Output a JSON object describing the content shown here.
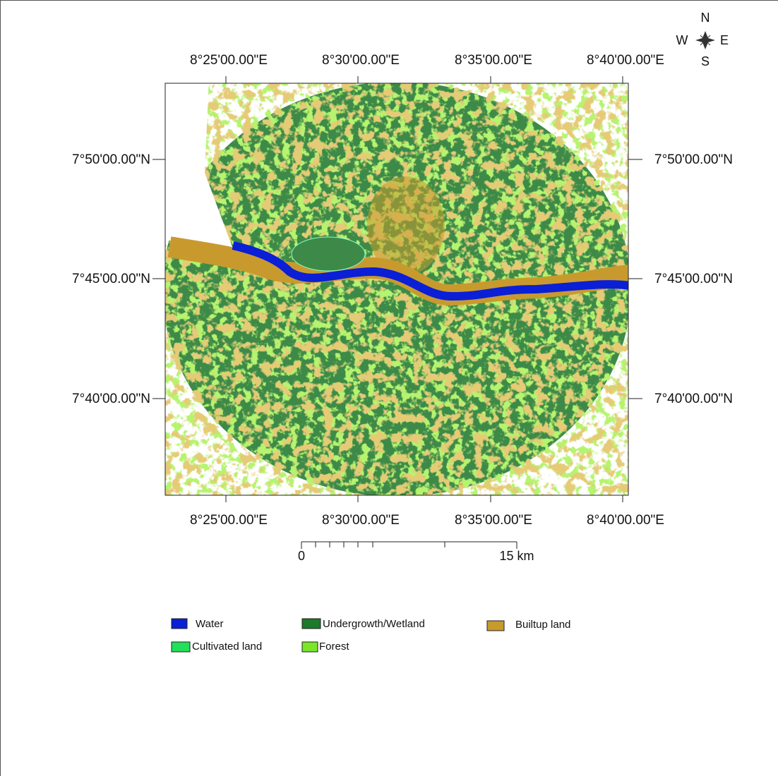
{
  "compass": {
    "north": "N",
    "south": "S",
    "west": "W",
    "east": "E"
  },
  "map": {
    "top_labels": [
      "8°25'00.00\"E",
      "8°30'00.00\"E",
      "8°35'00.00\"E",
      "8°40'00.00\"E"
    ],
    "bottom_labels": [
      "8°25'00.00\"E",
      "8°30'00.00\"E",
      "8°35'00.00\"E",
      "8°40'00.00\"E"
    ],
    "left_labels": [
      "7°50'00.00\"N",
      "7°45'00.00\"N",
      "7°40'00.00\"N"
    ],
    "right_labels": [
      "7°50'00.00\"N",
      "7°45'00.00\"N",
      "7°40'00.00\"N"
    ]
  },
  "scale_bar": {
    "start": "0",
    "end": "15 km"
  },
  "legend": [
    {
      "label": "Water",
      "color": "#0a1fd6"
    },
    {
      "label": "Undergrowth/Wetland",
      "color": "#1c7a2a"
    },
    {
      "label": "Builtup land",
      "color": "#c89a2e"
    },
    {
      "label": "Cultivated land",
      "color": "#22e05a"
    },
    {
      "label": "Forest",
      "color": "#7ae62a"
    }
  ]
}
